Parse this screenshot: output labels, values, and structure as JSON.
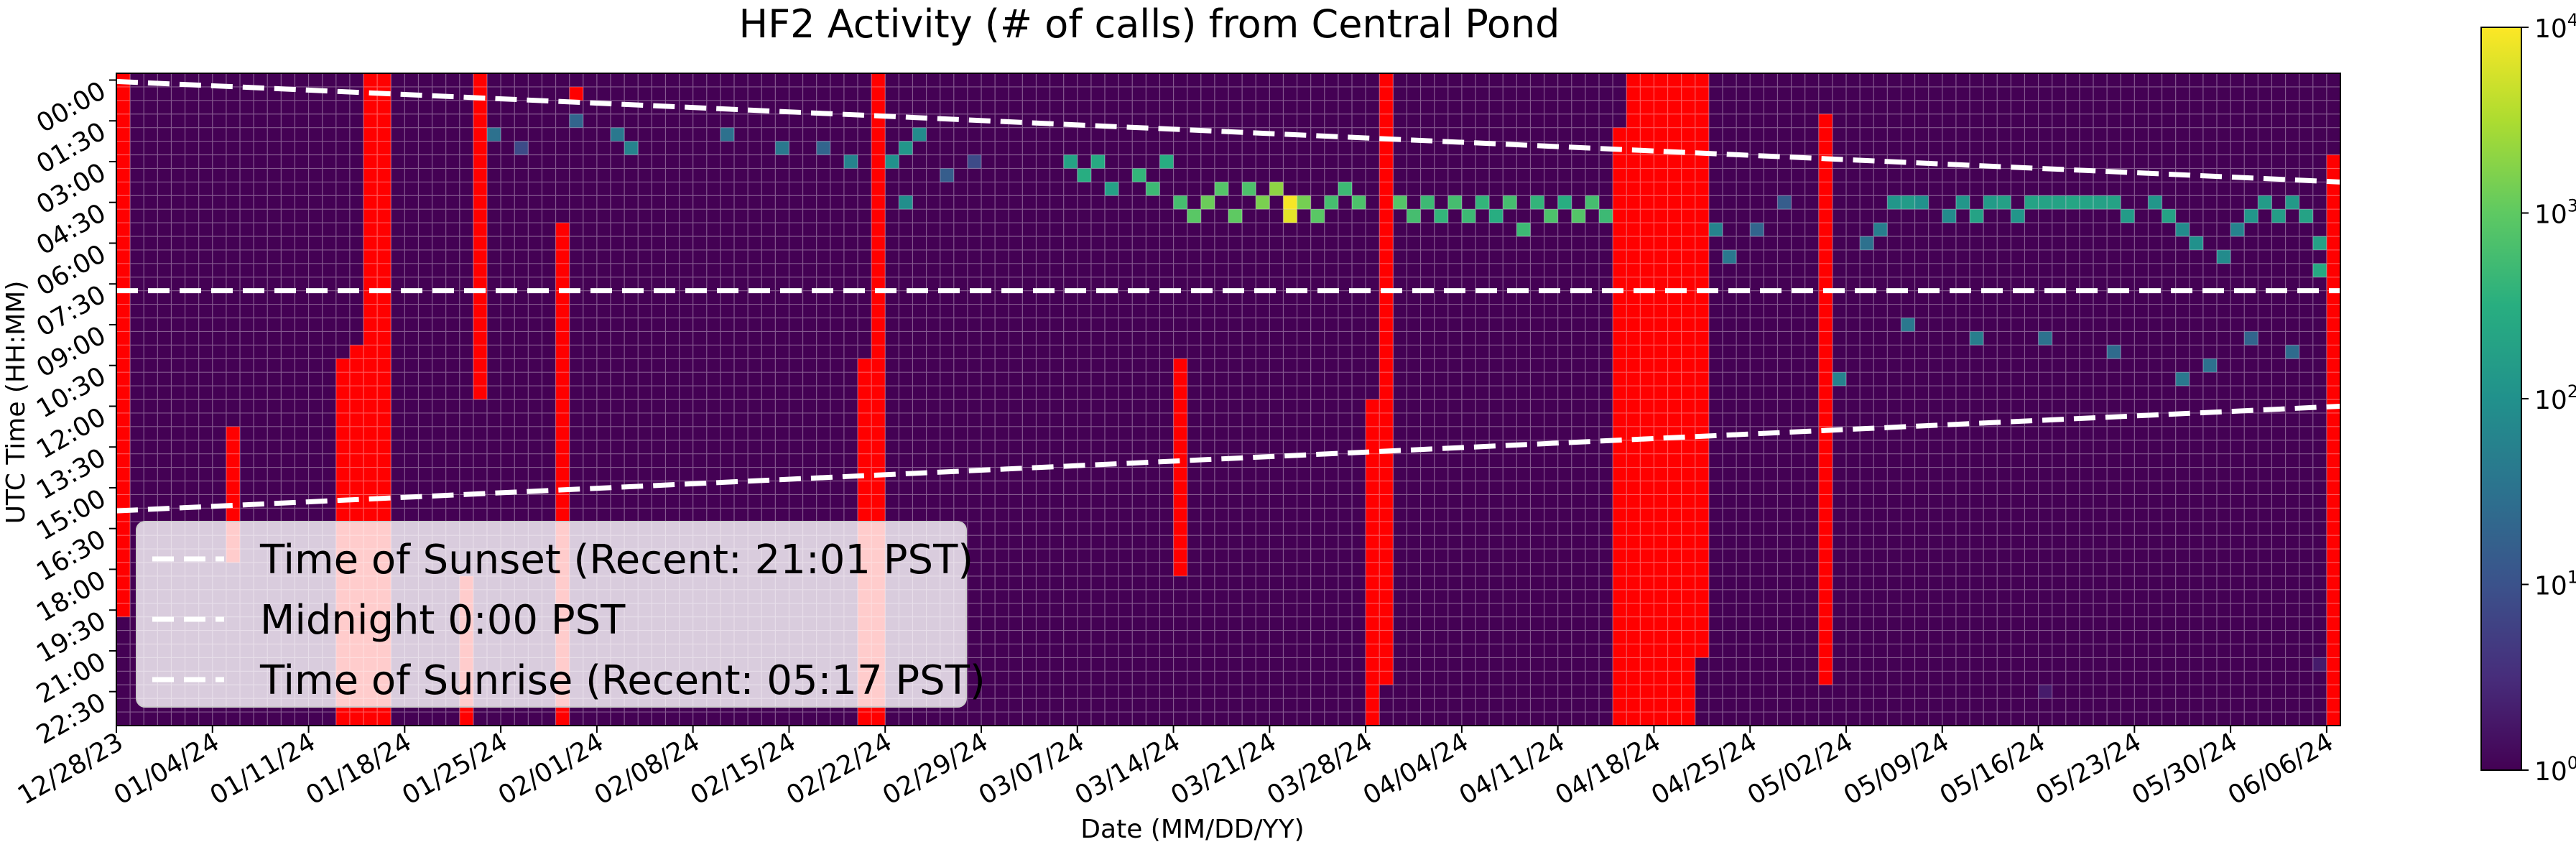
{
  "chart_data": {
    "type": "heatmap",
    "title": "HF2 Activity (# of calls) from Central Pond",
    "xlabel": "Date (MM/DD/YY)",
    "ylabel": "UTC Time (HH:MM)",
    "x_tick_labels": [
      "12/28/23",
      "01/04/24",
      "01/11/24",
      "01/18/24",
      "01/25/24",
      "02/01/24",
      "02/08/24",
      "02/15/24",
      "02/22/24",
      "02/29/24",
      "03/07/24",
      "03/14/24",
      "03/21/24",
      "03/28/24",
      "04/04/24",
      "04/11/24",
      "04/18/24",
      "04/25/24",
      "05/02/24",
      "05/09/24",
      "05/16/24",
      "05/23/24",
      "05/30/24",
      "06/06/24"
    ],
    "y_tick_labels": [
      "00:00",
      "01:30",
      "03:00",
      "04:30",
      "06:00",
      "07:30",
      "09:00",
      "10:30",
      "12:00",
      "13:30",
      "15:00",
      "16:30",
      "18:00",
      "19:30",
      "21:00",
      "22:30"
    ],
    "num_days": 162,
    "num_bins": 48,
    "colorbar": {
      "scale": "log",
      "colormap": "viridis",
      "range": [
        1,
        10000
      ],
      "ticks": [
        {
          "base": "10",
          "exp": "0"
        },
        {
          "base": "10",
          "exp": "1"
        },
        {
          "base": "10",
          "exp": "2"
        },
        {
          "base": "10",
          "exp": "3"
        },
        {
          "base": "10",
          "exp": "4"
        }
      ]
    },
    "no_data_color": "#ff0000",
    "background_color": "#440154",
    "no_data_spans": [
      {
        "days": [
          0,
          0
        ],
        "bins": [
          0,
          39
        ]
      },
      {
        "days": [
          8,
          8
        ],
        "bins": [
          26,
          35
        ]
      },
      {
        "days": [
          16,
          16
        ],
        "bins": [
          21,
          47
        ]
      },
      {
        "days": [
          17,
          17
        ],
        "bins": [
          20,
          47
        ]
      },
      {
        "days": [
          18,
          19
        ],
        "bins": [
          0,
          47
        ]
      },
      {
        "days": [
          25,
          25
        ],
        "bins": [
          37,
          47
        ]
      },
      {
        "days": [
          26,
          26
        ],
        "bins": [
          0,
          23
        ]
      },
      {
        "days": [
          32,
          32
        ],
        "bins": [
          11,
          47
        ]
      },
      {
        "days": [
          33,
          33
        ],
        "bins": [
          1,
          1
        ]
      },
      {
        "days": [
          54,
          54
        ],
        "bins": [
          21,
          47
        ]
      },
      {
        "days": [
          55,
          55
        ],
        "bins": [
          0,
          47
        ]
      },
      {
        "days": [
          77,
          77
        ],
        "bins": [
          21,
          36
        ]
      },
      {
        "days": [
          91,
          91
        ],
        "bins": [
          24,
          47
        ]
      },
      {
        "days": [
          92,
          92
        ],
        "bins": [
          0,
          44
        ]
      },
      {
        "days": [
          109,
          109
        ],
        "bins": [
          4,
          47
        ]
      },
      {
        "days": [
          110,
          114
        ],
        "bins": [
          0,
          47
        ]
      },
      {
        "days": [
          115,
          115
        ],
        "bins": [
          0,
          42
        ]
      },
      {
        "days": [
          124,
          124
        ],
        "bins": [
          3,
          44
        ]
      },
      {
        "days": [
          161,
          161
        ],
        "bins": [
          6,
          47
        ]
      }
    ],
    "cells": [
      {
        "day": 27,
        "bin": 4,
        "value": 30
      },
      {
        "day": 29,
        "bin": 5,
        "value": 8
      },
      {
        "day": 33,
        "bin": 3,
        "value": 20
      },
      {
        "day": 36,
        "bin": 4,
        "value": 40
      },
      {
        "day": 37,
        "bin": 5,
        "value": 60
      },
      {
        "day": 44,
        "bin": 4,
        "value": 30
      },
      {
        "day": 48,
        "bin": 5,
        "value": 40
      },
      {
        "day": 51,
        "bin": 5,
        "value": 20
      },
      {
        "day": 53,
        "bin": 6,
        "value": 60
      },
      {
        "day": 56,
        "bin": 6,
        "value": 100
      },
      {
        "day": 57,
        "bin": 5,
        "value": 120
      },
      {
        "day": 58,
        "bin": 4,
        "value": 80
      },
      {
        "day": 57,
        "bin": 9,
        "value": 90
      },
      {
        "day": 60,
        "bin": 7,
        "value": 15
      },
      {
        "day": 62,
        "bin": 6,
        "value": 8
      },
      {
        "day": 69,
        "bin": 6,
        "value": 200
      },
      {
        "day": 70,
        "bin": 7,
        "value": 300
      },
      {
        "day": 71,
        "bin": 6,
        "value": 260
      },
      {
        "day": 72,
        "bin": 8,
        "value": 180
      },
      {
        "day": 74,
        "bin": 7,
        "value": 400
      },
      {
        "day": 75,
        "bin": 8,
        "value": 500
      },
      {
        "day": 76,
        "bin": 6,
        "value": 300
      },
      {
        "day": 77,
        "bin": 9,
        "value": 600
      },
      {
        "day": 78,
        "bin": 10,
        "value": 900
      },
      {
        "day": 79,
        "bin": 9,
        "value": 1200
      },
      {
        "day": 80,
        "bin": 8,
        "value": 800
      },
      {
        "day": 81,
        "bin": 10,
        "value": 1000
      },
      {
        "day": 82,
        "bin": 8,
        "value": 700
      },
      {
        "day": 83,
        "bin": 9,
        "value": 1500
      },
      {
        "day": 84,
        "bin": 8,
        "value": 2000
      },
      {
        "day": 85,
        "bin": 9,
        "value": 9000
      },
      {
        "day": 85,
        "bin": 10,
        "value": 7000
      },
      {
        "day": 86,
        "bin": 9,
        "value": 1400
      },
      {
        "day": 87,
        "bin": 10,
        "value": 900
      },
      {
        "day": 88,
        "bin": 9,
        "value": 600
      },
      {
        "day": 89,
        "bin": 8,
        "value": 500
      },
      {
        "day": 90,
        "bin": 9,
        "value": 700
      },
      {
        "day": 93,
        "bin": 9,
        "value": 800
      },
      {
        "day": 94,
        "bin": 10,
        "value": 600
      },
      {
        "day": 95,
        "bin": 9,
        "value": 500
      },
      {
        "day": 96,
        "bin": 10,
        "value": 400
      },
      {
        "day": 97,
        "bin": 9,
        "value": 600
      },
      {
        "day": 98,
        "bin": 10,
        "value": 500
      },
      {
        "day": 99,
        "bin": 9,
        "value": 400
      },
      {
        "day": 100,
        "bin": 10,
        "value": 300
      },
      {
        "day": 101,
        "bin": 9,
        "value": 600
      },
      {
        "day": 102,
        "bin": 11,
        "value": 500
      },
      {
        "day": 103,
        "bin": 9,
        "value": 400
      },
      {
        "day": 104,
        "bin": 10,
        "value": 700
      },
      {
        "day": 105,
        "bin": 9,
        "value": 300
      },
      {
        "day": 106,
        "bin": 10,
        "value": 800
      },
      {
        "day": 107,
        "bin": 9,
        "value": 600
      },
      {
        "day": 108,
        "bin": 10,
        "value": 500
      },
      {
        "day": 116,
        "bin": 11,
        "value": 60
      },
      {
        "day": 117,
        "bin": 13,
        "value": 40
      },
      {
        "day": 119,
        "bin": 11,
        "value": 20
      },
      {
        "day": 121,
        "bin": 9,
        "value": 15
      },
      {
        "day": 127,
        "bin": 12,
        "value": 30
      },
      {
        "day": 128,
        "bin": 11,
        "value": 50
      },
      {
        "day": 129,
        "bin": 9,
        "value": 120
      },
      {
        "day": 130,
        "bin": 9,
        "value": 150
      },
      {
        "day": 131,
        "bin": 9,
        "value": 100
      },
      {
        "day": 133,
        "bin": 10,
        "value": 80
      },
      {
        "day": 134,
        "bin": 9,
        "value": 120
      },
      {
        "day": 135,
        "bin": 10,
        "value": 200
      },
      {
        "day": 136,
        "bin": 9,
        "value": 150
      },
      {
        "day": 137,
        "bin": 9,
        "value": 180
      },
      {
        "day": 138,
        "bin": 10,
        "value": 120
      },
      {
        "day": 139,
        "bin": 9,
        "value": 200
      },
      {
        "day": 140,
        "bin": 9,
        "value": 200
      },
      {
        "day": 141,
        "bin": 9,
        "value": 200
      },
      {
        "day": 142,
        "bin": 9,
        "value": 220
      },
      {
        "day": 143,
        "bin": 9,
        "value": 200
      },
      {
        "day": 144,
        "bin": 9,
        "value": 180
      },
      {
        "day": 145,
        "bin": 9,
        "value": 200
      },
      {
        "day": 146,
        "bin": 10,
        "value": 150
      },
      {
        "day": 148,
        "bin": 9,
        "value": 120
      },
      {
        "day": 149,
        "bin": 10,
        "value": 200
      },
      {
        "day": 150,
        "bin": 11,
        "value": 80
      },
      {
        "day": 151,
        "bin": 12,
        "value": 100
      },
      {
        "day": 153,
        "bin": 13,
        "value": 80
      },
      {
        "day": 154,
        "bin": 11,
        "value": 60
      },
      {
        "day": 155,
        "bin": 10,
        "value": 120
      },
      {
        "day": 156,
        "bin": 9,
        "value": 150
      },
      {
        "day": 157,
        "bin": 10,
        "value": 160
      },
      {
        "day": 158,
        "bin": 9,
        "value": 140
      },
      {
        "day": 159,
        "bin": 10,
        "value": 200
      },
      {
        "day": 160,
        "bin": 12,
        "value": 180
      },
      {
        "day": 160,
        "bin": 14,
        "value": 250
      },
      {
        "day": 140,
        "bin": 19,
        "value": 30
      },
      {
        "day": 145,
        "bin": 20,
        "value": 25
      },
      {
        "day": 150,
        "bin": 22,
        "value": 40
      },
      {
        "day": 152,
        "bin": 21,
        "value": 30
      },
      {
        "day": 155,
        "bin": 19,
        "value": 20
      },
      {
        "day": 158,
        "bin": 20,
        "value": 25
      },
      {
        "day": 135,
        "bin": 19,
        "value": 50
      },
      {
        "day": 130,
        "bin": 18,
        "value": 40
      },
      {
        "day": 125,
        "bin": 22,
        "value": 60
      },
      {
        "day": 160,
        "bin": 43,
        "value": 2
      },
      {
        "day": 140,
        "bin": 45,
        "value": 2
      }
    ],
    "reference_lines": [
      {
        "label": "Time of Sunset (Recent: 21:01 PST)",
        "start_bin": 0.6,
        "end_bin": 8.0,
        "color": "#ffffff",
        "style": "dashed"
      },
      {
        "label": "Midnight 0:00 PST",
        "start_bin": 16.0,
        "end_bin": 16.0,
        "color": "#ffffff",
        "style": "dashed"
      },
      {
        "label": "Time of Sunrise (Recent: 05:17 PST)",
        "start_bin": 32.2,
        "end_bin": 24.5,
        "color": "#ffffff",
        "style": "dashed"
      }
    ],
    "legend": {
      "placement": "lower-left"
    }
  }
}
